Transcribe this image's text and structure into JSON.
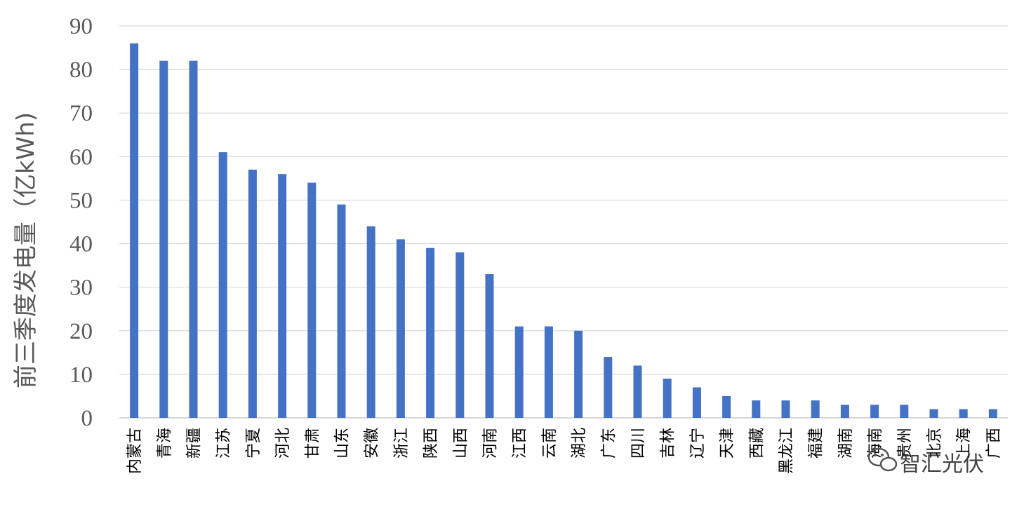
{
  "chart_data": {
    "type": "bar",
    "ylabel": "前三季度发电量（亿kWh)",
    "xlabel": "",
    "title": "",
    "ylim": [
      0,
      90
    ],
    "yticks": [
      0,
      10,
      20,
      30,
      40,
      50,
      60,
      70,
      80,
      90
    ],
    "grid": true,
    "legend": "none",
    "bar_color": "#4472C4",
    "categories": [
      "内蒙古",
      "青海",
      "新疆",
      "江苏",
      "宁夏",
      "河北",
      "甘肃",
      "山东",
      "安徽",
      "浙江",
      "陕西",
      "山西",
      "河南",
      "江西",
      "云南",
      "湖北",
      "广东",
      "四川",
      "吉林",
      "辽宁",
      "天津",
      "西藏",
      "黑龙江",
      "福建",
      "湖南",
      "海南",
      "贵州",
      "北京",
      "上海",
      "广西"
    ],
    "series": [
      {
        "values": [
          86,
          82,
          82,
          61,
          57,
          56,
          54,
          49,
          44,
          41,
          39,
          38,
          33,
          21,
          21,
          20,
          14,
          12,
          9,
          7,
          5,
          4,
          4,
          4,
          3,
          3,
          3,
          2,
          2,
          2
        ]
      }
    ]
  },
  "watermark": {
    "text": "智汇光伏",
    "icon": "wechat-icon"
  }
}
